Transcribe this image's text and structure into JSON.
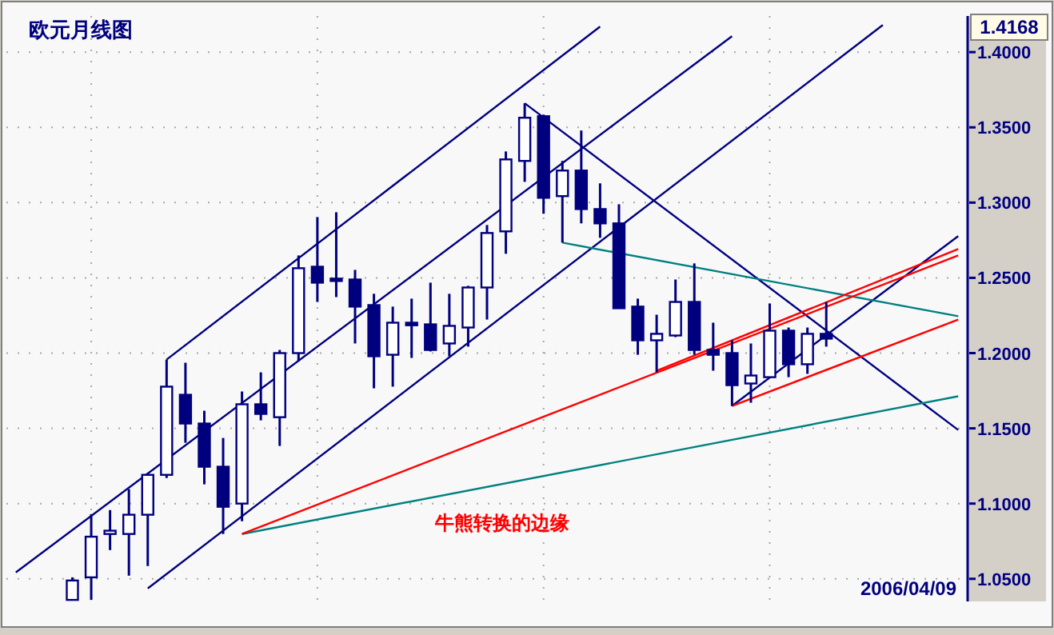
{
  "chart_data": {
    "type": "candlestick",
    "title": "欧元月线图",
    "annotations": [
      "1.4168",
      "牛熊转换的边缘",
      "2006/04/09"
    ],
    "categories": [
      null,
      null,
      null,
      null,
      null,
      null,
      null,
      null,
      null,
      null,
      null,
      null,
      null,
      null,
      null,
      null,
      null,
      null,
      null,
      null,
      null,
      null,
      null,
      null,
      null,
      null,
      null,
      null,
      null,
      null,
      null,
      null,
      null,
      null,
      null,
      null,
      null,
      null,
      null,
      null,
      null,
      null,
      null,
      null,
      null,
      null,
      null,
      null,
      null,
      null,
      null
    ],
    "ohlc": [
      null,
      null,
      null,
      [
        1.036,
        1.051,
        1.036,
        1.0489
      ],
      [
        1.051,
        1.093,
        1.036,
        1.078
      ],
      [
        1.0798,
        1.0957,
        1.0691,
        1.082
      ],
      [
        1.0798,
        1.1096,
        1.0521,
        1.0926
      ],
      [
        1.0926,
        1.1202,
        1.0585,
        1.1191
      ],
      [
        1.1191,
        1.1957,
        1.117,
        1.1777
      ],
      [
        1.1723,
        1.1936,
        1.1404,
        1.1532
      ],
      [
        1.1532,
        1.1617,
        1.1128,
        1.1245
      ],
      [
        1.1245,
        1.1436,
        1.0798,
        1.0979
      ],
      [
        1.1,
        1.1745,
        1.0883,
        1.166
      ],
      [
        1.166,
        1.1872,
        1.1553,
        1.1596
      ],
      [
        1.1574,
        1.2021,
        1.1383,
        1.2
      ],
      [
        1.2,
        1.2649,
        1.1947,
        1.2564
      ],
      [
        1.2574,
        1.2904,
        1.234,
        1.2468
      ],
      [
        1.2495,
        1.2936,
        1.2372,
        1.2485
      ],
      [
        1.2489,
        1.2553,
        1.2064,
        1.2309
      ],
      [
        1.2319,
        1.2394,
        1.1766,
        1.1979
      ],
      [
        1.1989,
        1.2309,
        1.1777,
        1.2202
      ],
      [
        1.2202,
        1.2362,
        1.1968,
        1.2185
      ],
      [
        1.2191,
        1.2468,
        1.2011,
        1.2021
      ],
      [
        1.2064,
        1.2394,
        1.1979,
        1.2181
      ],
      [
        1.217,
        1.2447,
        1.2043,
        1.2436
      ],
      [
        1.2436,
        1.2851,
        1.2223,
        1.2798
      ],
      [
        1.2809,
        1.334,
        1.266,
        1.3287
      ],
      [
        1.3277,
        1.366,
        1.3138,
        1.3564
      ],
      [
        1.3574,
        1.3585,
        1.2926,
        1.3032
      ],
      [
        1.3043,
        1.3277,
        1.2734,
        1.3213
      ],
      [
        1.3213,
        1.3479,
        1.2862,
        1.2957
      ],
      [
        1.2957,
        1.3128,
        1.2766,
        1.2862
      ],
      [
        1.2862,
        1.2989,
        1.2298,
        1.2298
      ],
      [
        1.2309,
        1.2362,
        1.1989,
        1.2085
      ],
      [
        1.2085,
        1.2255,
        1.1872,
        1.2128
      ],
      [
        1.2117,
        1.2489,
        1.2106,
        1.234
      ],
      [
        1.234,
        1.2596,
        1.1989,
        1.2021
      ],
      [
        1.2021,
        1.2202,
        1.1883,
        1.1989
      ],
      [
        1.2,
        1.2085,
        1.1649,
        1.1787
      ],
      [
        1.1798,
        1.2064,
        1.167,
        1.1851
      ],
      [
        1.184,
        1.233,
        1.184,
        1.2149
      ],
      [
        1.2149,
        1.217,
        1.184,
        1.1926
      ],
      [
        1.1926,
        1.217,
        1.1862,
        1.2128
      ],
      [
        1.2128,
        1.234,
        1.2043,
        1.2096
      ],
      null,
      null,
      null,
      null,
      null,
      null,
      null
    ],
    "series": [
      {
        "type": "line",
        "color": "#000080",
        "values": [
          null,
          null,
          null,
          null,
          null,
          null,
          null,
          null,
          1.1957,
          null,
          null,
          null,
          null,
          null,
          null,
          null,
          null,
          null,
          null,
          null,
          null,
          null,
          null,
          null,
          null,
          null,
          null,
          null,
          null,
          null,
          null,
          1.417,
          null,
          null,
          null,
          null,
          null,
          null,
          null,
          null,
          null,
          null,
          null,
          null,
          null,
          null,
          null,
          null,
          null,
          null,
          null
        ]
      },
      {
        "type": "line",
        "color": "#000080",
        "values": [
          1.0543,
          null,
          null,
          null,
          null,
          null,
          null,
          null,
          null,
          null,
          null,
          null,
          null,
          null,
          null,
          null,
          null,
          null,
          null,
          null,
          null,
          null,
          null,
          null,
          null,
          null,
          null,
          null,
          null,
          null,
          null,
          null,
          null,
          null,
          null,
          null,
          null,
          null,
          1.4106,
          null,
          null,
          null,
          null,
          null,
          null,
          null,
          null,
          null,
          null,
          null,
          null
        ]
      },
      {
        "type": "line",
        "color": "#000080",
        "values": [
          null,
          null,
          null,
          null,
          null,
          null,
          null,
          1.0436,
          null,
          null,
          null,
          null,
          null,
          null,
          null,
          null,
          null,
          null,
          null,
          null,
          null,
          null,
          null,
          null,
          null,
          null,
          null,
          null,
          null,
          null,
          null,
          null,
          null,
          null,
          null,
          null,
          null,
          null,
          null,
          null,
          null,
          null,
          null,
          null,
          null,
          null,
          1.418,
          null,
          null,
          null,
          null
        ]
      },
      {
        "type": "line",
        "color": "#000080",
        "values": [
          null,
          null,
          null,
          null,
          null,
          null,
          null,
          null,
          null,
          null,
          null,
          null,
          null,
          null,
          null,
          null,
          null,
          null,
          null,
          null,
          null,
          null,
          null,
          null,
          null,
          null,
          null,
          1.366,
          null,
          null,
          null,
          null,
          null,
          null,
          null,
          null,
          null,
          null,
          null,
          null,
          null,
          null,
          null,
          null,
          null,
          null,
          null,
          null,
          null,
          null,
          1.1489
        ]
      },
      {
        "type": "line",
        "color": "#000080",
        "values": [
          null,
          null,
          null,
          null,
          null,
          null,
          null,
          null,
          null,
          null,
          null,
          null,
          null,
          null,
          null,
          null,
          null,
          null,
          null,
          null,
          null,
          null,
          null,
          null,
          null,
          null,
          null,
          null,
          null,
          null,
          null,
          null,
          null,
          null,
          null,
          null,
          null,
          null,
          1.1649,
          null,
          null,
          null,
          null,
          null,
          null,
          null,
          null,
          null,
          null,
          null,
          1.2777
        ]
      },
      {
        "type": "line",
        "color": "#008080",
        "values": [
          null,
          null,
          null,
          null,
          null,
          null,
          null,
          null,
          null,
          null,
          null,
          null,
          null,
          null,
          null,
          null,
          null,
          null,
          null,
          null,
          null,
          null,
          null,
          null,
          null,
          null,
          null,
          null,
          null,
          1.2734,
          null,
          null,
          null,
          null,
          null,
          null,
          null,
          null,
          null,
          null,
          null,
          null,
          null,
          null,
          null,
          null,
          null,
          null,
          null,
          null,
          1.2245
        ]
      },
      {
        "type": "line",
        "color": "#008080",
        "values": [
          null,
          null,
          null,
          null,
          null,
          null,
          null,
          null,
          null,
          null,
          null,
          null,
          1.0798,
          null,
          null,
          null,
          null,
          null,
          null,
          null,
          null,
          null,
          null,
          null,
          null,
          null,
          null,
          null,
          null,
          null,
          null,
          null,
          null,
          null,
          null,
          null,
          null,
          null,
          null,
          null,
          null,
          null,
          null,
          null,
          null,
          null,
          null,
          null,
          null,
          null,
          1.1713
        ]
      },
      {
        "type": "line",
        "color": "#ff0000",
        "values": [
          null,
          null,
          null,
          null,
          null,
          null,
          null,
          null,
          null,
          null,
          null,
          null,
          1.0798,
          null,
          null,
          null,
          null,
          null,
          null,
          null,
          null,
          null,
          null,
          null,
          null,
          null,
          null,
          null,
          null,
          null,
          null,
          null,
          null,
          null,
          null,
          null,
          null,
          null,
          null,
          null,
          null,
          null,
          null,
          null,
          null,
          null,
          null,
          null,
          null,
          null,
          1.2649
        ]
      },
      {
        "type": "line",
        "color": "#ff0000",
        "values": [
          null,
          null,
          null,
          null,
          null,
          null,
          null,
          null,
          null,
          null,
          null,
          null,
          null,
          null,
          null,
          null,
          null,
          null,
          null,
          null,
          null,
          null,
          null,
          null,
          null,
          null,
          null,
          null,
          null,
          null,
          null,
          null,
          null,
          null,
          1.1883,
          null,
          null,
          null,
          null,
          null,
          null,
          null,
          null,
          null,
          null,
          null,
          null,
          null,
          null,
          null,
          1.2691
        ]
      },
      {
        "type": "line",
        "color": "#ff0000",
        "values": [
          null,
          null,
          null,
          null,
          null,
          null,
          null,
          null,
          null,
          null,
          null,
          null,
          null,
          null,
          null,
          null,
          null,
          null,
          null,
          null,
          null,
          null,
          null,
          null,
          null,
          null,
          null,
          null,
          null,
          null,
          null,
          null,
          null,
          null,
          null,
          null,
          null,
          null,
          1.1649,
          null,
          null,
          null,
          null,
          null,
          null,
          null,
          null,
          null,
          null,
          null,
          1.2223
        ]
      }
    ],
    "ylim": [
      1.035,
      1.424
    ],
    "yticks": [
      {
        "value": 1.05,
        "label": "1.0500"
      },
      {
        "value": 1.1,
        "label": "1.1000"
      },
      {
        "value": 1.15,
        "label": "1.1500"
      },
      {
        "value": 1.2,
        "label": "1.2000"
      },
      {
        "value": 1.25,
        "label": "1.2500"
      },
      {
        "value": 1.3,
        "label": "1.3000"
      },
      {
        "value": 1.35,
        "label": "1.3500"
      },
      {
        "value": 1.4,
        "label": "1.4000"
      }
    ],
    "grid": true
  }
}
